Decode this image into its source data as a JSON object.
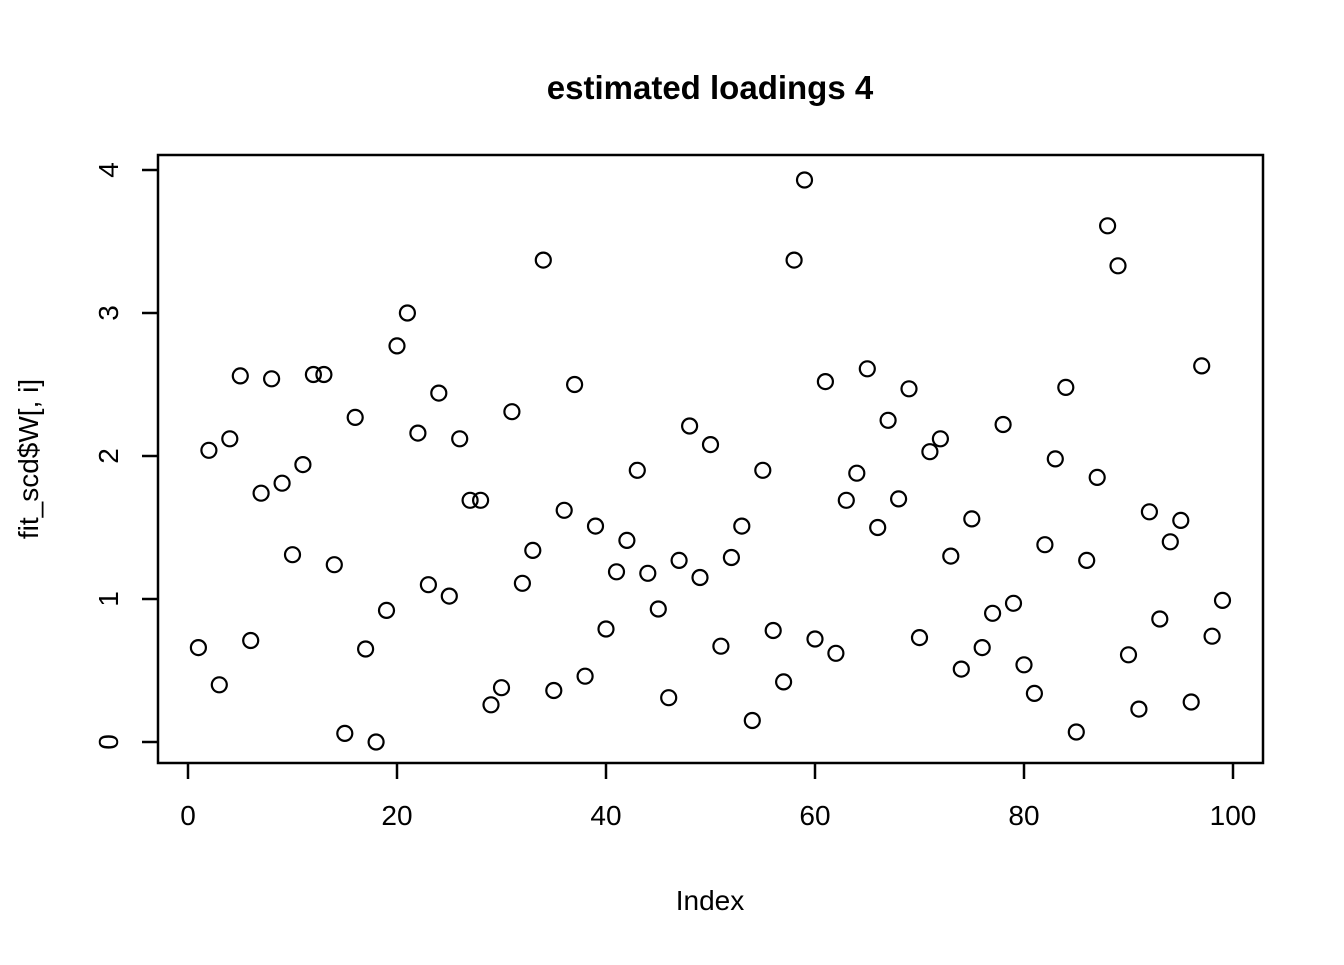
{
  "title": "estimated loadings 4",
  "chart_data": {
    "type": "scatter",
    "title": "estimated loadings 4",
    "xlabel": "Index",
    "ylabel": "fit_scd$W[, i]",
    "xlim": [
      0,
      100
    ],
    "ylim": [
      0,
      4
    ],
    "x_ticks": [
      0,
      20,
      40,
      60,
      80,
      100
    ],
    "y_ticks": [
      0,
      1,
      2,
      3,
      4
    ],
    "grid": false,
    "legend": null,
    "marker": "open-circle",
    "colors": {
      "points": "#000000",
      "axis": "#000000",
      "background": "#ffffff"
    },
    "x": [
      1,
      2,
      3,
      4,
      5,
      6,
      7,
      8,
      9,
      10,
      11,
      12,
      13,
      14,
      15,
      16,
      17,
      18,
      19,
      20,
      21,
      22,
      23,
      24,
      25,
      26,
      27,
      28,
      29,
      30,
      31,
      32,
      33,
      34,
      35,
      36,
      37,
      38,
      39,
      40,
      41,
      42,
      43,
      44,
      45,
      46,
      47,
      48,
      49,
      50,
      51,
      52,
      53,
      54,
      55,
      56,
      57,
      58,
      59,
      60,
      61,
      62,
      63,
      64,
      65,
      66,
      67,
      68,
      69,
      70,
      71,
      72,
      73,
      74,
      75,
      76,
      77,
      78,
      79,
      80,
      81,
      82,
      83,
      84,
      85,
      86,
      87,
      88,
      89,
      90,
      91,
      92,
      93,
      94,
      95,
      96,
      97,
      98,
      99
    ],
    "y": [
      0.66,
      2.04,
      0.4,
      2.12,
      2.56,
      0.71,
      1.74,
      2.54,
      1.81,
      1.31,
      1.94,
      2.57,
      2.57,
      1.24,
      0.06,
      2.27,
      0.65,
      0.0,
      0.92,
      2.77,
      3.0,
      2.16,
      1.1,
      2.44,
      1.02,
      2.12,
      1.69,
      1.69,
      0.26,
      0.38,
      2.31,
      1.11,
      1.34,
      3.37,
      0.36,
      1.62,
      2.5,
      0.46,
      1.51,
      0.79,
      1.19,
      1.41,
      1.9,
      1.18,
      0.93,
      0.31,
      1.27,
      2.21,
      1.15,
      2.08,
      0.67,
      1.29,
      1.51,
      0.15,
      1.9,
      0.78,
      0.42,
      3.37,
      3.93,
      0.72,
      2.52,
      0.62,
      1.69,
      1.88,
      2.61,
      1.5,
      2.25,
      1.7,
      2.47,
      0.73,
      2.03,
      2.12,
      1.3,
      0.51,
      1.56,
      0.66,
      0.9,
      2.22,
      0.97,
      0.54,
      0.34,
      1.38,
      1.98,
      2.48,
      0.07,
      1.27,
      1.85,
      3.61,
      3.33,
      0.61,
      0.23,
      1.61,
      0.86,
      1.4,
      1.55,
      0.28,
      2.63,
      0.74,
      0.99
    ]
  }
}
